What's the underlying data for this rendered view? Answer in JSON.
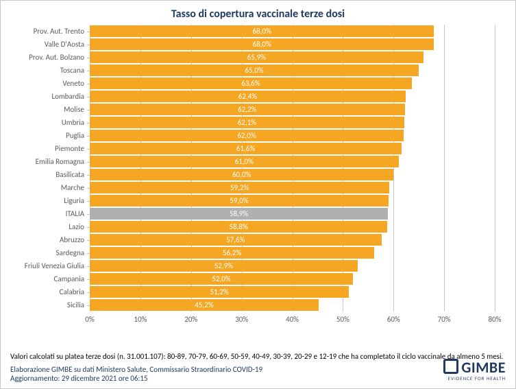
{
  "title": "Tasso di copertura vaccinale terze dosi",
  "chart": {
    "type": "bar",
    "xlim": [
      0,
      80
    ],
    "xtick_step": 10,
    "xtick_format_suffix": "%",
    "bar_color": "#f5a623",
    "italia_bar_color": "#b0b0b0",
    "grid_color": "#c8c8c8",
    "value_label_color": "#ffffff",
    "axis_label_color": "#5a5a5a",
    "label_fontsize": 11,
    "value_fontsize": 11,
    "title_color": "#1f3a63",
    "title_fontsize": 16,
    "background_color": "#ffffff",
    "rows": [
      {
        "name": "Prov. Aut. Trento",
        "value": 68.0,
        "label": "68,0%"
      },
      {
        "name": "Valle D'Aosta",
        "value": 68.0,
        "label": "68,0%"
      },
      {
        "name": "Prov. Aut. Bolzano",
        "value": 65.9,
        "label": "65,9%"
      },
      {
        "name": "Toscana",
        "value": 65.0,
        "label": "65,0%"
      },
      {
        "name": "Veneto",
        "value": 63.6,
        "label": "63,6%"
      },
      {
        "name": "Lombardia",
        "value": 62.4,
        "label": "62,4%"
      },
      {
        "name": "Molise",
        "value": 62.2,
        "label": "62,2%"
      },
      {
        "name": "Umbria",
        "value": 62.1,
        "label": "62,1%"
      },
      {
        "name": "Puglia",
        "value": 62.0,
        "label": "62,0%"
      },
      {
        "name": "Piemonte",
        "value": 61.6,
        "label": "61,6%"
      },
      {
        "name": "Emilia Romagna",
        "value": 61.0,
        "label": "61,0%"
      },
      {
        "name": "Basilicata",
        "value": 60.0,
        "label": "60,0%"
      },
      {
        "name": "Marche",
        "value": 59.2,
        "label": "59,2%"
      },
      {
        "name": "Liguria",
        "value": 59.0,
        "label": "59,0%"
      },
      {
        "name": "ITALIA",
        "value": 58.9,
        "label": "58,9%",
        "highlight": true
      },
      {
        "name": "Lazio",
        "value": 58.8,
        "label": "58,8%"
      },
      {
        "name": "Abruzzo",
        "value": 57.6,
        "label": "57,6%"
      },
      {
        "name": "Sardegna",
        "value": 56.2,
        "label": "56,2%"
      },
      {
        "name": "Friuli Venezia Giulia",
        "value": 52.9,
        "label": "52,9%"
      },
      {
        "name": "Campania",
        "value": 52.0,
        "label": "52,0%"
      },
      {
        "name": "Calabria",
        "value": 51.2,
        "label": "51,2%"
      },
      {
        "name": "Sicilia",
        "value": 45.2,
        "label": "45,2%"
      }
    ]
  },
  "footer": {
    "note": "Valori calcolati su platea terze dosi (n. 31.001.107): 80-89, 70-79, 60-69, 50-59, 40-49, 30-39, 20-29 e 12-19 che ha completato il ciclo vaccinale da almeno 5 mesi.",
    "source": "Elaborazione GIMBE su dati Ministero Salute, Commissario Straordinario COVID-19",
    "update": "Aggiornamento: 29 dicembre 2021 ore 06:15",
    "logo_main": "GIMBE",
    "logo_sub": "EVIDENCE FOR HEALTH"
  }
}
